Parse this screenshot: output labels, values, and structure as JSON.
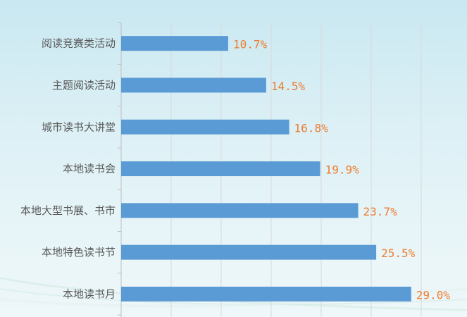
{
  "chart_data": {
    "type": "bar",
    "orientation": "horizontal",
    "categories": [
      "阅读竞赛类活动",
      "主题阅读活动",
      "城市读书大讲堂",
      "本地读书会",
      "本地大型书展、书市",
      "本地特色读书节",
      "本地读书月"
    ],
    "values": [
      10.7,
      14.5,
      16.8,
      19.9,
      23.7,
      25.5,
      29.0
    ],
    "value_labels": [
      "10.7%",
      "14.5%",
      "16.8%",
      "19.9%",
      "23.7%",
      "25.5%",
      "29.0%"
    ],
    "unit": "%",
    "xlim": [
      0,
      30
    ],
    "grid": true,
    "legend": "none",
    "colors": {
      "bar": "#5B9BD5",
      "value_label": "#ED7D31",
      "category_label": "#595959",
      "grid": "#D9D9D9"
    }
  }
}
